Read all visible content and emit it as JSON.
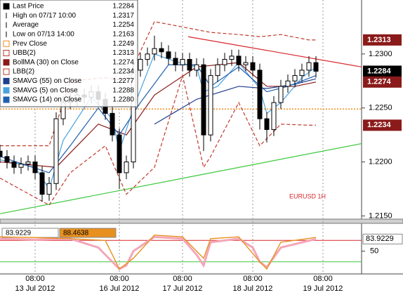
{
  "chart_data": {
    "type": "candlestick",
    "xlim": [
      0,
      51.5
    ],
    "ylim": [
      1.2147,
      1.235
    ],
    "xticks": [
      {
        "value": 5,
        "label": "08:00"
      },
      {
        "value": 17,
        "label": "08:00"
      },
      {
        "value": 26,
        "label": "08:00"
      },
      {
        "value": 36,
        "label": "08:00"
      },
      {
        "value": 46,
        "label": "08:00"
      }
    ],
    "xtick_dates": [
      "13 Jul 2012",
      "16 Jul 2012",
      "17 Jul 2012",
      "18 Jul 2012",
      "19 Jul 2012"
    ],
    "yticks": [
      {
        "value": 1.215,
        "label": "1.2150"
      },
      {
        "value": 1.22,
        "label": "1.2200"
      },
      {
        "value": 1.225,
        "label": "1.2250"
      },
      {
        "value": 1.23,
        "label": "1.2300"
      }
    ],
    "xgrid": true,
    "annotation": "EURUSD 1H",
    "ohlc": {
      "x": [
        0,
        1,
        2,
        3,
        4,
        5,
        6,
        7,
        8,
        9,
        10,
        11,
        12,
        13,
        14,
        15,
        16,
        17,
        18,
        19,
        20,
        21,
        22,
        23,
        24,
        25,
        26,
        27,
        28,
        29,
        30,
        31,
        32,
        33,
        34,
        35,
        36,
        37,
        38,
        39,
        40,
        41,
        42,
        43,
        44,
        45
      ],
      "open": [
        1.221,
        1.2205,
        1.22,
        1.2195,
        1.2198,
        1.22,
        1.219,
        1.217,
        1.218,
        1.224,
        1.2255,
        1.2258,
        1.2262,
        1.226,
        1.2265,
        1.2258,
        1.2245,
        1.2225,
        1.219,
        1.22,
        1.2285,
        1.2295,
        1.23,
        1.2305,
        1.2302,
        1.2296,
        1.229,
        1.2295,
        1.2285,
        1.229,
        1.2225,
        1.228,
        1.229,
        1.2295,
        1.2298,
        1.229,
        1.2292,
        1.2285,
        1.224,
        1.223,
        1.2255,
        1.227,
        1.2275,
        1.228,
        1.2285,
        1.2292
      ],
      "high": [
        1.2216,
        1.2211,
        1.2206,
        1.2204,
        1.2206,
        1.2206,
        1.2196,
        1.2186,
        1.2246,
        1.2261,
        1.2264,
        1.2268,
        1.2268,
        1.2271,
        1.2271,
        1.2264,
        1.2251,
        1.2231,
        1.2206,
        1.2291,
        1.2301,
        1.2306,
        1.2317,
        1.2311,
        1.2308,
        1.2302,
        1.2301,
        1.2301,
        1.2296,
        1.2296,
        1.2286,
        1.2296,
        1.2301,
        1.2304,
        1.2304,
        1.2298,
        1.2298,
        1.2291,
        1.2246,
        1.2261,
        1.2276,
        1.2281,
        1.2286,
        1.2291,
        1.2298,
        1.2298
      ],
      "low": [
        1.2199,
        1.2194,
        1.2189,
        1.2189,
        1.2192,
        1.2184,
        1.2163,
        1.2164,
        1.2174,
        1.2234,
        1.2249,
        1.2252,
        1.2254,
        1.2254,
        1.2252,
        1.2239,
        1.2219,
        1.2175,
        1.2184,
        1.2194,
        1.2279,
        1.2289,
        1.2294,
        1.2296,
        1.229,
        1.2284,
        1.2284,
        1.2279,
        1.2279,
        1.221,
        1.2219,
        1.2274,
        1.2284,
        1.2289,
        1.2284,
        1.2284,
        1.2279,
        1.223,
        1.2218,
        1.2224,
        1.2249,
        1.2264,
        1.2269,
        1.2274,
        1.2279,
        1.2278
      ],
      "close": [
        1.2205,
        1.22,
        1.2195,
        1.2198,
        1.22,
        1.219,
        1.217,
        1.218,
        1.224,
        1.2255,
        1.2258,
        1.2262,
        1.226,
        1.2265,
        1.2258,
        1.2245,
        1.2225,
        1.219,
        1.22,
        1.2285,
        1.2295,
        1.23,
        1.2305,
        1.2302,
        1.2296,
        1.229,
        1.2295,
        1.2285,
        1.229,
        1.2225,
        1.228,
        1.229,
        1.2295,
        1.2298,
        1.229,
        1.2292,
        1.2285,
        1.224,
        1.223,
        1.2255,
        1.227,
        1.2275,
        1.228,
        1.2285,
        1.2292,
        1.2284
      ]
    },
    "legend": [
      {
        "label": "Last Price",
        "value": 1.2284,
        "color": "#000000",
        "tag_color": "#000000"
      },
      {
        "label": "High on 07/17 10:00",
        "value": 1.2317
      },
      {
        "label": "Average",
        "value": 1.2254
      },
      {
        "label": "Low on 07/13 14:00",
        "value": 1.2163
      },
      {
        "label": "Prev Close",
        "value": 1.2249,
        "color": "#f28c1e",
        "dash": "2,2",
        "level": true
      },
      {
        "label": "UBB(2)",
        "value": 1.2313,
        "color": "#c0392b",
        "dash": "5,3",
        "tag_color": "#8b1a1a",
        "x": [
          0,
          7,
          10,
          15,
          18,
          22,
          26,
          30,
          34,
          37,
          40,
          44,
          45
        ],
        "values": [
          1.2215,
          1.2215,
          1.2275,
          1.2278,
          1.2275,
          1.233,
          1.2325,
          1.232,
          1.2318,
          1.2316,
          1.2318,
          1.2313,
          1.2313
        ]
      },
      {
        "label": "BollMA (30) on Close",
        "value": 1.2274,
        "color": "#8b1a1a",
        "tag_color": "#8b1a1a",
        "x": [
          0,
          8,
          14,
          18,
          22,
          28,
          34,
          38,
          42,
          45
        ],
        "values": [
          1.22,
          1.2195,
          1.2235,
          1.2225,
          1.2262,
          1.2288,
          1.2292,
          1.227,
          1.227,
          1.2274
        ]
      },
      {
        "label": "LBB(2)",
        "value": 1.2234,
        "color": "#c0392b",
        "dash": "5,3",
        "tag_color": "#8b1a1a",
        "x": [
          0,
          7,
          10,
          15,
          18,
          22,
          26,
          29,
          30,
          34,
          37,
          40,
          44,
          45
        ],
        "values": [
          1.2185,
          1.216,
          1.219,
          1.2215,
          1.217,
          1.2195,
          1.228,
          1.2195,
          1.2205,
          1.2255,
          1.2215,
          1.2235,
          1.2234,
          1.2234
        ]
      },
      {
        "label": "SMAVG (55) on Close",
        "value": 1.2277,
        "color": "#1f3f8f",
        "x": [
          22,
          28,
          34,
          38,
          42,
          45
        ],
        "values": [
          1.2235,
          1.2258,
          1.227,
          1.2268,
          1.2272,
          1.2277
        ]
      },
      {
        "label": "SMAVG (5) on Close",
        "value": 1.2288,
        "color": "#4aa3e0",
        "x": [
          0,
          5,
          7,
          9,
          13,
          16,
          17,
          19,
          22,
          25,
          28,
          29,
          31,
          34,
          37,
          38,
          40,
          43,
          45
        ],
        "values": [
          1.2202,
          1.2195,
          1.2175,
          1.222,
          1.226,
          1.224,
          1.221,
          1.225,
          1.23,
          1.2293,
          1.2288,
          1.2265,
          1.227,
          1.2292,
          1.2268,
          1.2245,
          1.2255,
          1.2278,
          1.2288
        ]
      },
      {
        "label": "SMAVG (14) on Close",
        "value": 1.228,
        "value_label": "1.2280",
        "color": "#2060b0",
        "x": [
          0,
          7,
          10,
          14,
          17,
          20,
          24,
          28,
          30,
          34,
          38,
          41,
          45
        ],
        "values": [
          1.2205,
          1.219,
          1.2215,
          1.225,
          1.2225,
          1.2255,
          1.229,
          1.229,
          1.227,
          1.2288,
          1.2265,
          1.227,
          1.228
        ]
      }
    ],
    "trendlines": [
      {
        "color": "#d9262c",
        "x": [
          26.8,
          51.5
        ],
        "values": [
          1.2316,
          1.2288
        ]
      },
      {
        "color": "#3cc83c",
        "x": [
          0,
          51.5
        ],
        "values": [
          1.2152,
          1.2217
        ]
      }
    ],
    "oscillator": {
      "ylim": [
        -10,
        120
      ],
      "yticks": [
        50
      ],
      "levels": [
        {
          "value": 80,
          "color": "#d9262c"
        },
        {
          "value": 20,
          "color": "#3cc83c"
        }
      ],
      "series": [
        {
          "color": "#f4a6b8",
          "x": [
            0,
            5,
            10,
            14,
            15,
            17,
            18,
            19,
            22,
            26,
            28,
            29,
            30,
            34,
            36,
            37,
            38,
            40,
            45
          ],
          "values": [
            85,
            82,
            85,
            60,
            40,
            0,
            10,
            50,
            90,
            85,
            40,
            10,
            75,
            85,
            60,
            20,
            5,
            60,
            83.9229
          ]
        },
        {
          "color": "#e8901e",
          "x": [
            0,
            5,
            10,
            15,
            17,
            19,
            22,
            26,
            29,
            30,
            34,
            37,
            38,
            40,
            45
          ],
          "values": [
            90,
            88,
            85,
            80,
            0,
            30,
            95,
            90,
            30,
            85,
            90,
            20,
            0,
            75,
            88.4638
          ]
        }
      ]
    }
  }
}
